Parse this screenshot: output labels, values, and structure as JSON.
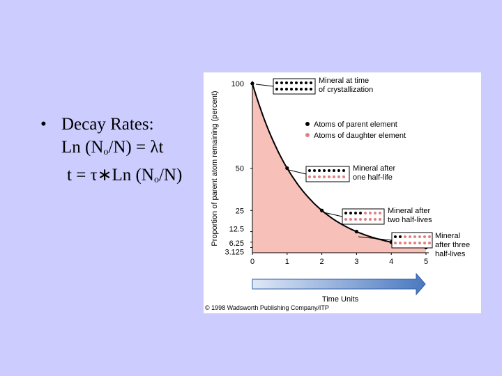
{
  "slide": {
    "bullet": "•",
    "heading": "Decay Rates:",
    "eq1": {
      "a": "Ln (N",
      "sub": "o",
      "b": "/N) = λt"
    },
    "eq2": {
      "a": "t = τ∗Ln (N",
      "sub": "o",
      "b": "/N)"
    }
  },
  "figure": {
    "copyright": "© 1998 Wadsworth Publishing Company/ITP",
    "legend": {
      "parent": "Atoms of parent element",
      "daughter": "Atoms of daughter element",
      "parent_color": "#000000",
      "daughter_color": "#e08080"
    },
    "callouts": [
      {
        "lines": [
          "Mineral at time",
          "of crystallization"
        ],
        "parent_dots": 16,
        "daughter_dots": 0
      },
      {
        "lines": [
          "Mineral after",
          "one half-life"
        ],
        "parent_dots": 8,
        "daughter_dots": 8
      },
      {
        "lines": [
          "Mineral after",
          "two half-lives"
        ],
        "parent_dots": 4,
        "daughter_dots": 12
      },
      {
        "lines": [
          "Mineral",
          "after three",
          "half-lives"
        ],
        "parent_dots": 2,
        "daughter_dots": 14
      }
    ],
    "fill_color": "#f7c0b8",
    "arrow_color": "#4a78c0"
  },
  "chart_data": {
    "type": "area",
    "title": "",
    "xlabel": "Time Units",
    "ylabel": "Proportion of parent atom remaining (percent)",
    "x": [
      0,
      1,
      2,
      3,
      4,
      5
    ],
    "series": [
      {
        "values": [
          100,
          50,
          25,
          12.5,
          6.25,
          3.125
        ]
      }
    ],
    "xticks": [
      "0",
      "1",
      "2",
      "3",
      "4",
      "5"
    ],
    "yticks": [
      "100",
      "50",
      "25",
      "12.5",
      "6.25",
      "3.125"
    ],
    "ytick_values": [
      100,
      50,
      25,
      12.5,
      6.25,
      3.125
    ],
    "xlim": [
      0,
      5
    ],
    "ylim": [
      0,
      100
    ],
    "grid": false,
    "legend": "top-right"
  }
}
